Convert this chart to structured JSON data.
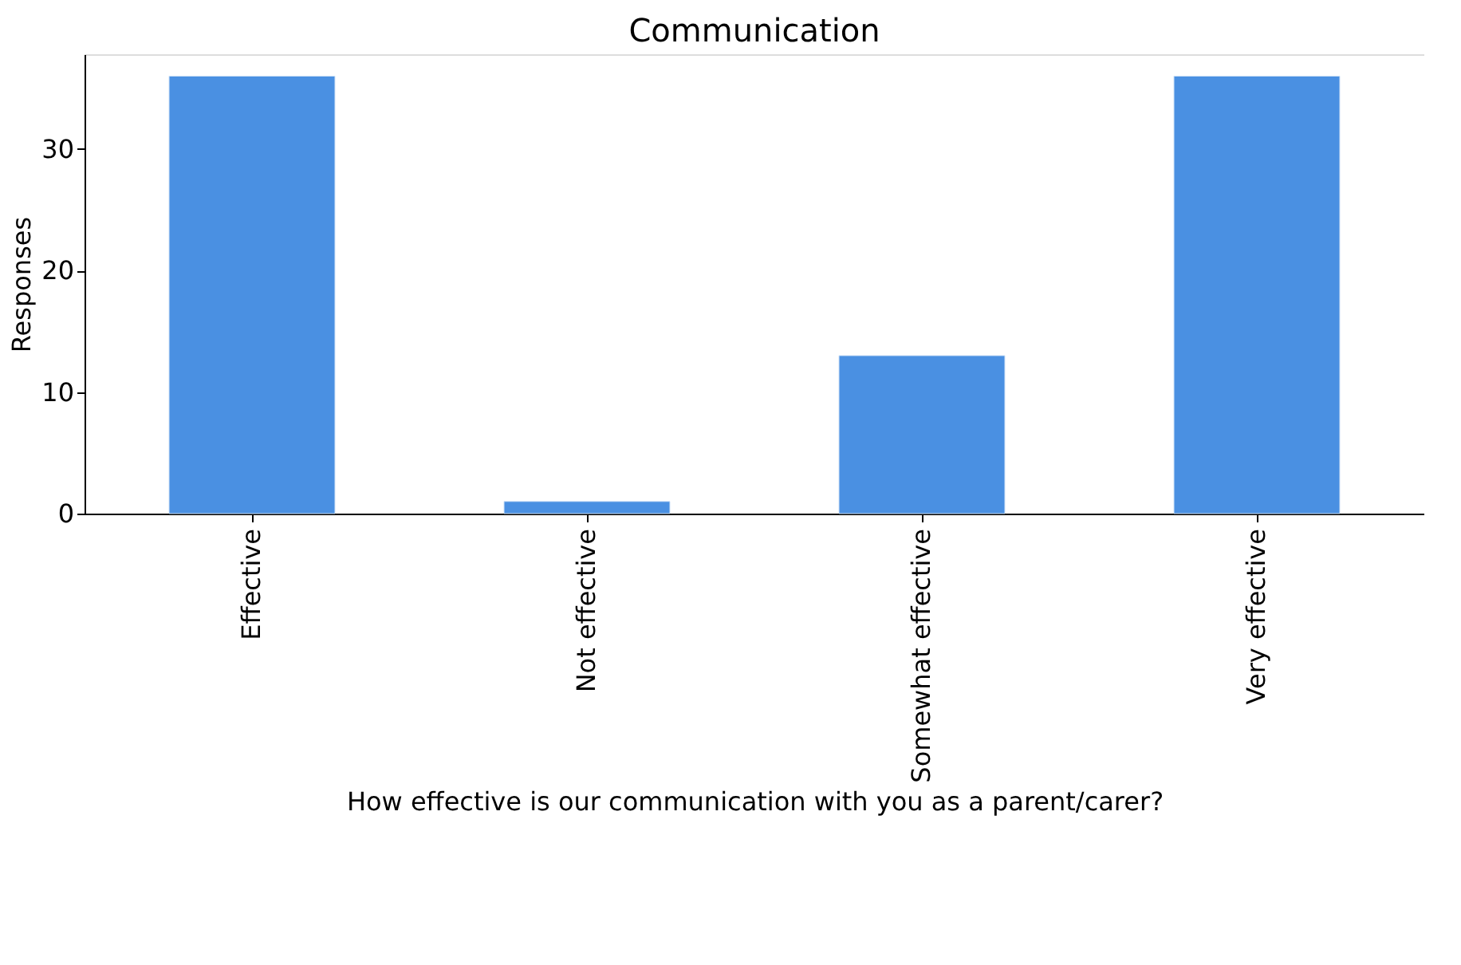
{
  "chart_data": {
    "type": "bar",
    "title": "Communication",
    "xlabel": "How effective is our communication with you as a parent/carer?",
    "ylabel": "Responses",
    "categories": [
      "Effective",
      "Not effective",
      "Somewhat effective",
      "Very effective"
    ],
    "values": [
      36,
      1,
      13,
      36
    ],
    "color": "#4a90e2",
    "ylim": [
      0,
      37.8
    ],
    "yticks": [
      0,
      10,
      20,
      30
    ],
    "grid": false
  }
}
